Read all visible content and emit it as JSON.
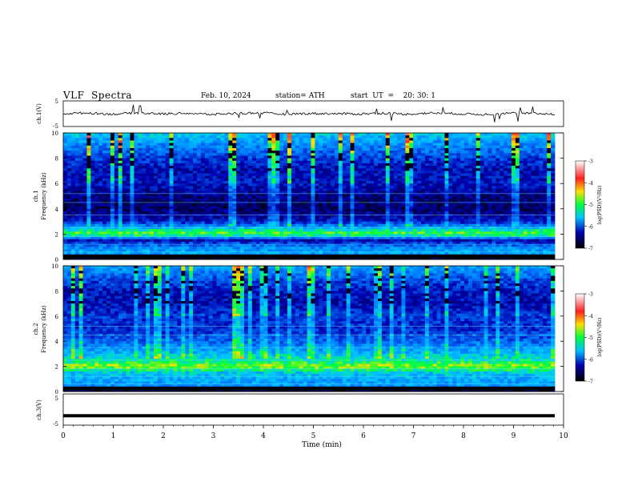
{
  "header": {
    "title": "VLF  Spectra",
    "date": "Feb. 10, 2024",
    "station": "station= ATH",
    "start": "start  UT  =    20: 30: 1"
  },
  "colorbar": {
    "ticks": [
      "-3",
      "-4",
      "-5",
      "-6",
      "-7"
    ],
    "label": "log(PSD)(V²/Hz)",
    "colors": [
      "#ffffff",
      "#ff2020",
      "#ffe000",
      "#00ff40",
      "#00c0ff",
      "#0000b0",
      "#000000"
    ]
  },
  "chart_data": [
    {
      "type": "line",
      "panel": "ch1-waveform",
      "ylabel": "ch.1(V)",
      "ylim": [
        -5,
        5
      ],
      "yticks": [
        "5",
        "-5"
      ],
      "xlim": [
        0,
        10
      ],
      "description_series": [
        {
          "values_V": [
            0.0,
            0.3,
            -0.2,
            0.4,
            -0.1,
            0.2,
            -0.3,
            0.1,
            0.3,
            -0.2,
            0.1,
            0.0,
            -0.1,
            0.2,
            -0.2,
            0.3,
            0.0,
            -0.3,
            0.2,
            0.1,
            -0.1
          ]
        }
      ]
    },
    {
      "type": "heatmap",
      "panel": "ch1-spectrogram",
      "ylabel": "Frequency  (kHz)",
      "ylabel2": "ch.1",
      "xlim": [
        0,
        10
      ],
      "ylim": [
        0,
        10
      ],
      "yticks": [
        "0",
        "2",
        "4",
        "6",
        "8",
        "10"
      ],
      "zlim": [
        -7,
        -3
      ],
      "bands_kHz": [
        {
          "f": 10.0,
          "logpsd": -5.2
        },
        {
          "f": 9.0,
          "logpsd": -5.6
        },
        {
          "f": 8.0,
          "logpsd": -6.0
        },
        {
          "f": 7.0,
          "logpsd": -6.3
        },
        {
          "f": 6.0,
          "logpsd": -6.2
        },
        {
          "f": 5.0,
          "logpsd": -6.5
        },
        {
          "f": 4.0,
          "logpsd": -6.6
        },
        {
          "f": 3.0,
          "logpsd": -6.2
        },
        {
          "f": 2.3,
          "logpsd": -5.0
        },
        {
          "f": 2.0,
          "logpsd": -4.6
        },
        {
          "f": 1.5,
          "logpsd": -6.3
        },
        {
          "f": 1.0,
          "logpsd": -5.6
        },
        {
          "f": 0.5,
          "logpsd": -5.4
        },
        {
          "f": 0.2,
          "logpsd": -6.9
        }
      ]
    },
    {
      "type": "heatmap",
      "panel": "ch2-spectrogram",
      "ylabel": "Frequency  (kHz)",
      "ylabel2": "ch.2",
      "xlim": [
        0,
        10
      ],
      "ylim": [
        0,
        10
      ],
      "yticks": [
        "0",
        "2",
        "4",
        "6",
        "8",
        "10"
      ],
      "zlim": [
        -7,
        -3
      ],
      "bands_kHz": [
        {
          "f": 10.0,
          "logpsd": -5.4
        },
        {
          "f": 9.0,
          "logpsd": -5.9
        },
        {
          "f": 8.0,
          "logpsd": -6.2
        },
        {
          "f": 7.0,
          "logpsd": -6.3
        },
        {
          "f": 6.0,
          "logpsd": -6.0
        },
        {
          "f": 5.0,
          "logpsd": -6.1
        },
        {
          "f": 4.0,
          "logpsd": -5.8
        },
        {
          "f": 3.0,
          "logpsd": -5.3
        },
        {
          "f": 2.5,
          "logpsd": -5.0
        },
        {
          "f": 2.0,
          "logpsd": -4.5
        },
        {
          "f": 1.5,
          "logpsd": -5.2
        },
        {
          "f": 1.0,
          "logpsd": -5.4
        },
        {
          "f": 0.5,
          "logpsd": -5.5
        },
        {
          "f": 0.2,
          "logpsd": -6.8
        }
      ]
    },
    {
      "type": "line",
      "panel": "ch3-waveform",
      "ylabel": "ch.3(V)",
      "ylim": [
        -5,
        5
      ],
      "yticks": [
        "5",
        "-5"
      ],
      "xlim": [
        0,
        10
      ],
      "xticks": [
        "0",
        "1",
        "2",
        "3",
        "4",
        "5",
        "6",
        "7",
        "8",
        "9",
        "10"
      ],
      "xlabel": "Time  (min)",
      "series": [
        {
          "values_V": [
            -2,
            -2
          ]
        }
      ]
    }
  ]
}
